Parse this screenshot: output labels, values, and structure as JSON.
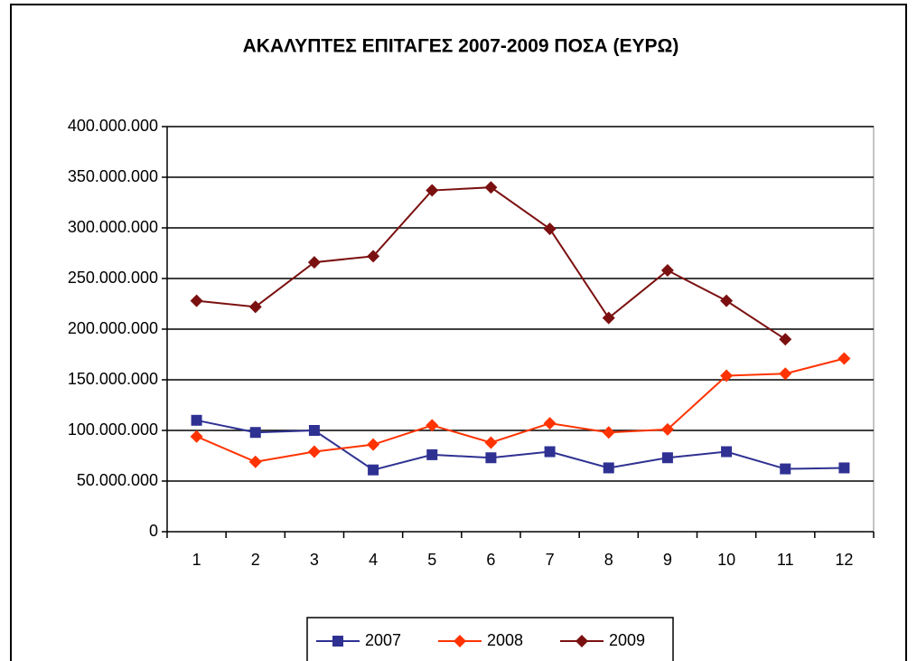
{
  "chart_data": {
    "type": "line",
    "title": "ΑΚΑΛΥΠΤΕΣ ΕΠΙΤΑΓΕΣ 2007-2009 ΠΟΣΑ (ΕΥΡΩ)",
    "categories": [
      1,
      2,
      3,
      4,
      5,
      6,
      7,
      8,
      9,
      10,
      11,
      12
    ],
    "series": [
      {
        "name": "2007",
        "color": "#2e3192",
        "marker": "square",
        "values": [
          110000000,
          98000000,
          100000000,
          61000000,
          76000000,
          73000000,
          79000000,
          63000000,
          73000000,
          79000000,
          62000000,
          63000000
        ]
      },
      {
        "name": "2008",
        "color": "#ff3300",
        "marker": "diamond",
        "values": [
          94000000,
          69000000,
          79000000,
          86000000,
          105000000,
          88000000,
          107000000,
          98000000,
          101000000,
          154000000,
          156000000,
          171000000
        ]
      },
      {
        "name": "2009",
        "color": "#7b1010",
        "marker": "diamond",
        "values": [
          228000000,
          222000000,
          266000000,
          272000000,
          337000000,
          340000000,
          299000000,
          211000000,
          258000000,
          228000000,
          190000000,
          null
        ]
      }
    ],
    "ylim": [
      0,
      400000000
    ],
    "yticks": [
      0,
      {
        "value": 50000000,
        "label": "50.000.000"
      },
      {
        "value": 100000000,
        "label": "100.000.000"
      },
      {
        "value": 150000000,
        "label": "150.000.000"
      },
      {
        "value": 200000000,
        "label": "200.000.000"
      },
      {
        "value": 250000000,
        "label": "250.000.000"
      },
      {
        "value": 300000000,
        "label": "300.000.000"
      },
      {
        "value": 350000000,
        "label": "350.000.000"
      },
      {
        "value": 400000000,
        "label": "400.000.000"
      }
    ],
    "grid": true,
    "legend": "bottom"
  }
}
